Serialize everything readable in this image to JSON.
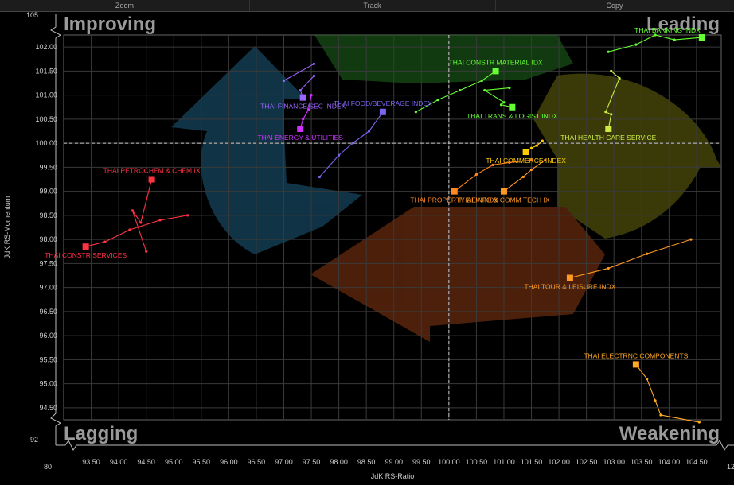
{
  "toolbar": {
    "zoom": "Zoom",
    "track": "Track",
    "copy": "Copy"
  },
  "chart_data": {
    "type": "scatter",
    "xlabel": "JdK RS-Ratio",
    "ylabel": "JdK RS-Momentum",
    "xlim": [
      93.0,
      104.95
    ],
    "ylim": [
      94.25,
      102.25
    ],
    "x_ticks": [
      "93.50",
      "94.00",
      "94.50",
      "95.00",
      "95.50",
      "96.00",
      "96.50",
      "97.00",
      "97.50",
      "98.00",
      "98.50",
      "99.00",
      "99.50",
      "100.00",
      "100.50",
      "101.00",
      "101.50",
      "102.00",
      "102.50",
      "103.00",
      "103.50",
      "104.00",
      "104.50"
    ],
    "y_ticks": [
      "94.50",
      "95.00",
      "95.50",
      "96.00",
      "96.50",
      "97.00",
      "97.50",
      "98.00",
      "98.50",
      "99.00",
      "99.50",
      "100.00",
      "100.50",
      "101.00",
      "101.50",
      "102.00"
    ],
    "outer_ticks": {
      "y_top": "105",
      "y_bottom": "92",
      "x_left": "80",
      "x_right": "12"
    },
    "quadrants": {
      "top_left": "Improving",
      "top_right": "Leading",
      "bottom_left": "Lagging",
      "bottom_right": "Weakening"
    },
    "center": [
      100.0,
      100.0
    ],
    "series": [
      {
        "name": "THAI BANKING INDX",
        "color": "#66ff33",
        "label_pos": "right",
        "points": [
          [
            102.9,
            101.9
          ],
          [
            103.4,
            102.05
          ],
          [
            103.75,
            102.25
          ],
          [
            104.1,
            102.15
          ],
          [
            104.6,
            102.2
          ]
        ]
      },
      {
        "name": "THAI CONSTR MATERIAL IDX",
        "color": "#66ff33",
        "label_pos": "above",
        "points": [
          [
            99.4,
            100.65
          ],
          [
            99.8,
            100.9
          ],
          [
            100.2,
            101.1
          ],
          [
            100.6,
            101.3
          ],
          [
            100.85,
            101.5
          ]
        ]
      },
      {
        "name": "THAI TRANS & LOGIST INDX",
        "color": "#66ff33",
        "label_pos": "below",
        "points": [
          [
            101.1,
            101.15
          ],
          [
            100.65,
            101.1
          ],
          [
            101.0,
            100.85
          ],
          [
            100.95,
            100.8
          ],
          [
            101.15,
            100.75
          ]
        ]
      },
      {
        "name": "THAI HEALTH CARE SERVICE",
        "color": "#ccee44",
        "label_pos": "below",
        "points": [
          [
            102.95,
            101.5
          ],
          [
            103.1,
            101.35
          ],
          [
            102.85,
            100.65
          ],
          [
            102.95,
            100.6
          ],
          [
            102.9,
            100.3
          ]
        ]
      },
      {
        "name": "THAI FINANCE/SEC INDEX",
        "color": "#9966ff",
        "label_pos": "below",
        "points": [
          [
            97.0,
            101.3
          ],
          [
            97.55,
            101.65
          ],
          [
            97.55,
            101.4
          ],
          [
            97.3,
            101.1
          ],
          [
            97.35,
            100.95
          ]
        ]
      },
      {
        "name": "THAI ENERGY & UTILITIES",
        "color": "#cc33ff",
        "label_pos": "below",
        "points": [
          [
            97.5,
            101.0
          ],
          [
            97.45,
            100.7
          ],
          [
            97.35,
            100.5
          ],
          [
            97.3,
            100.3
          ]
        ]
      },
      {
        "name": "THAI FOOD/BEVERAGE INDEX",
        "color": "#7766ee",
        "label_pos": "above",
        "points": [
          [
            97.65,
            99.3
          ],
          [
            98.0,
            99.75
          ],
          [
            98.25,
            100.0
          ],
          [
            98.55,
            100.25
          ],
          [
            98.8,
            100.65
          ]
        ]
      },
      {
        "name": "THAI COMMERCE INDEX",
        "color": "#ffcc00",
        "label_pos": "below",
        "points": [
          [
            101.7,
            100.05
          ],
          [
            101.6,
            99.95
          ],
          [
            101.5,
            99.9
          ],
          [
            101.4,
            99.82
          ]
        ]
      },
      {
        "name": "THAI PROPERTY DEV INDX",
        "color": "#ff8822",
        "label_pos": "below",
        "points": [
          [
            101.5,
            99.65
          ],
          [
            101.1,
            99.6
          ],
          [
            100.8,
            99.55
          ],
          [
            100.5,
            99.35
          ],
          [
            100.1,
            99.0
          ]
        ]
      },
      {
        "name": "THAI INFO & COMM TECH IX",
        "color": "#ff9922",
        "label_pos": "below",
        "points": [
          [
            101.75,
            99.65
          ],
          [
            101.5,
            99.45
          ],
          [
            101.35,
            99.3
          ],
          [
            101.0,
            99.0
          ]
        ]
      },
      {
        "name": "THAI TOUR & LEISURE INDX",
        "color": "#ff9922",
        "label_pos": "below",
        "points": [
          [
            104.4,
            98.0
          ],
          [
            103.6,
            97.7
          ],
          [
            102.9,
            97.4
          ],
          [
            102.2,
            97.2
          ]
        ]
      },
      {
        "name": "THAI ELECTRNC COMPONENTS",
        "color": "#ffaa22",
        "label_pos": "above",
        "points": [
          [
            104.55,
            94.2
          ],
          [
            103.85,
            94.35
          ],
          [
            103.75,
            94.65
          ],
          [
            103.6,
            95.1
          ],
          [
            103.4,
            95.4
          ]
        ]
      },
      {
        "name": "THAI PETROCHEM & CHEM IX",
        "color": "#ff3344",
        "label_pos": "above",
        "points": [
          [
            94.5,
            97.75
          ],
          [
            94.25,
            98.6
          ],
          [
            94.4,
            98.35
          ],
          [
            94.6,
            99.25
          ]
        ]
      },
      {
        "name": "THAI CONSTR SERVICES",
        "color": "#ff3344",
        "label_pos": "below",
        "points": [
          [
            95.25,
            98.5
          ],
          [
            94.75,
            98.4
          ],
          [
            94.2,
            98.2
          ],
          [
            93.75,
            97.95
          ],
          [
            93.4,
            97.85
          ]
        ]
      }
    ]
  }
}
